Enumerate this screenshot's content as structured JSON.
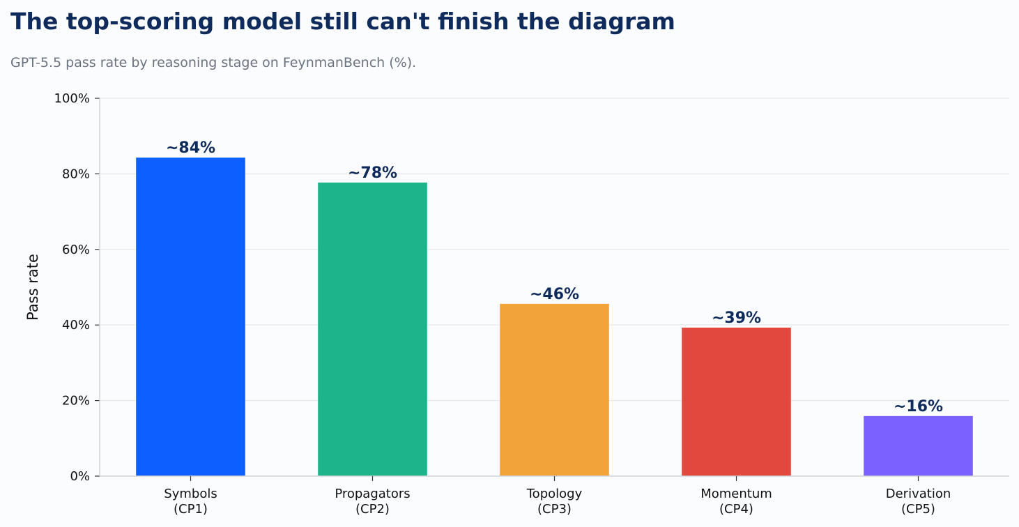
{
  "chart_data": {
    "type": "bar",
    "title": "The top-scoring model still can't finish the diagram",
    "subtitle": "GPT-5.5 pass rate by reasoning stage on FeynmanBench (%).",
    "xlabel": "",
    "ylabel": "Pass rate",
    "ylim": [
      0,
      100
    ],
    "yticks": [
      0,
      20,
      40,
      60,
      80,
      100
    ],
    "ytick_suffix": "%",
    "grid": true,
    "categories": [
      [
        "Symbols",
        "(CP1)"
      ],
      [
        "Propagators",
        "(CP2)"
      ],
      [
        "Topology",
        "(CP3)"
      ],
      [
        "Momentum",
        "(CP4)"
      ],
      [
        "Derivation",
        "(CP5)"
      ]
    ],
    "values": [
      84.3,
      77.7,
      45.6,
      39.3,
      15.9
    ],
    "data_labels": [
      "~84%",
      "~78%",
      "~46%",
      "~39%",
      "~16%"
    ],
    "colors": [
      "#0d5fff",
      "#1db48a",
      "#f2a33a",
      "#e2483d",
      "#7b61ff"
    ]
  }
}
